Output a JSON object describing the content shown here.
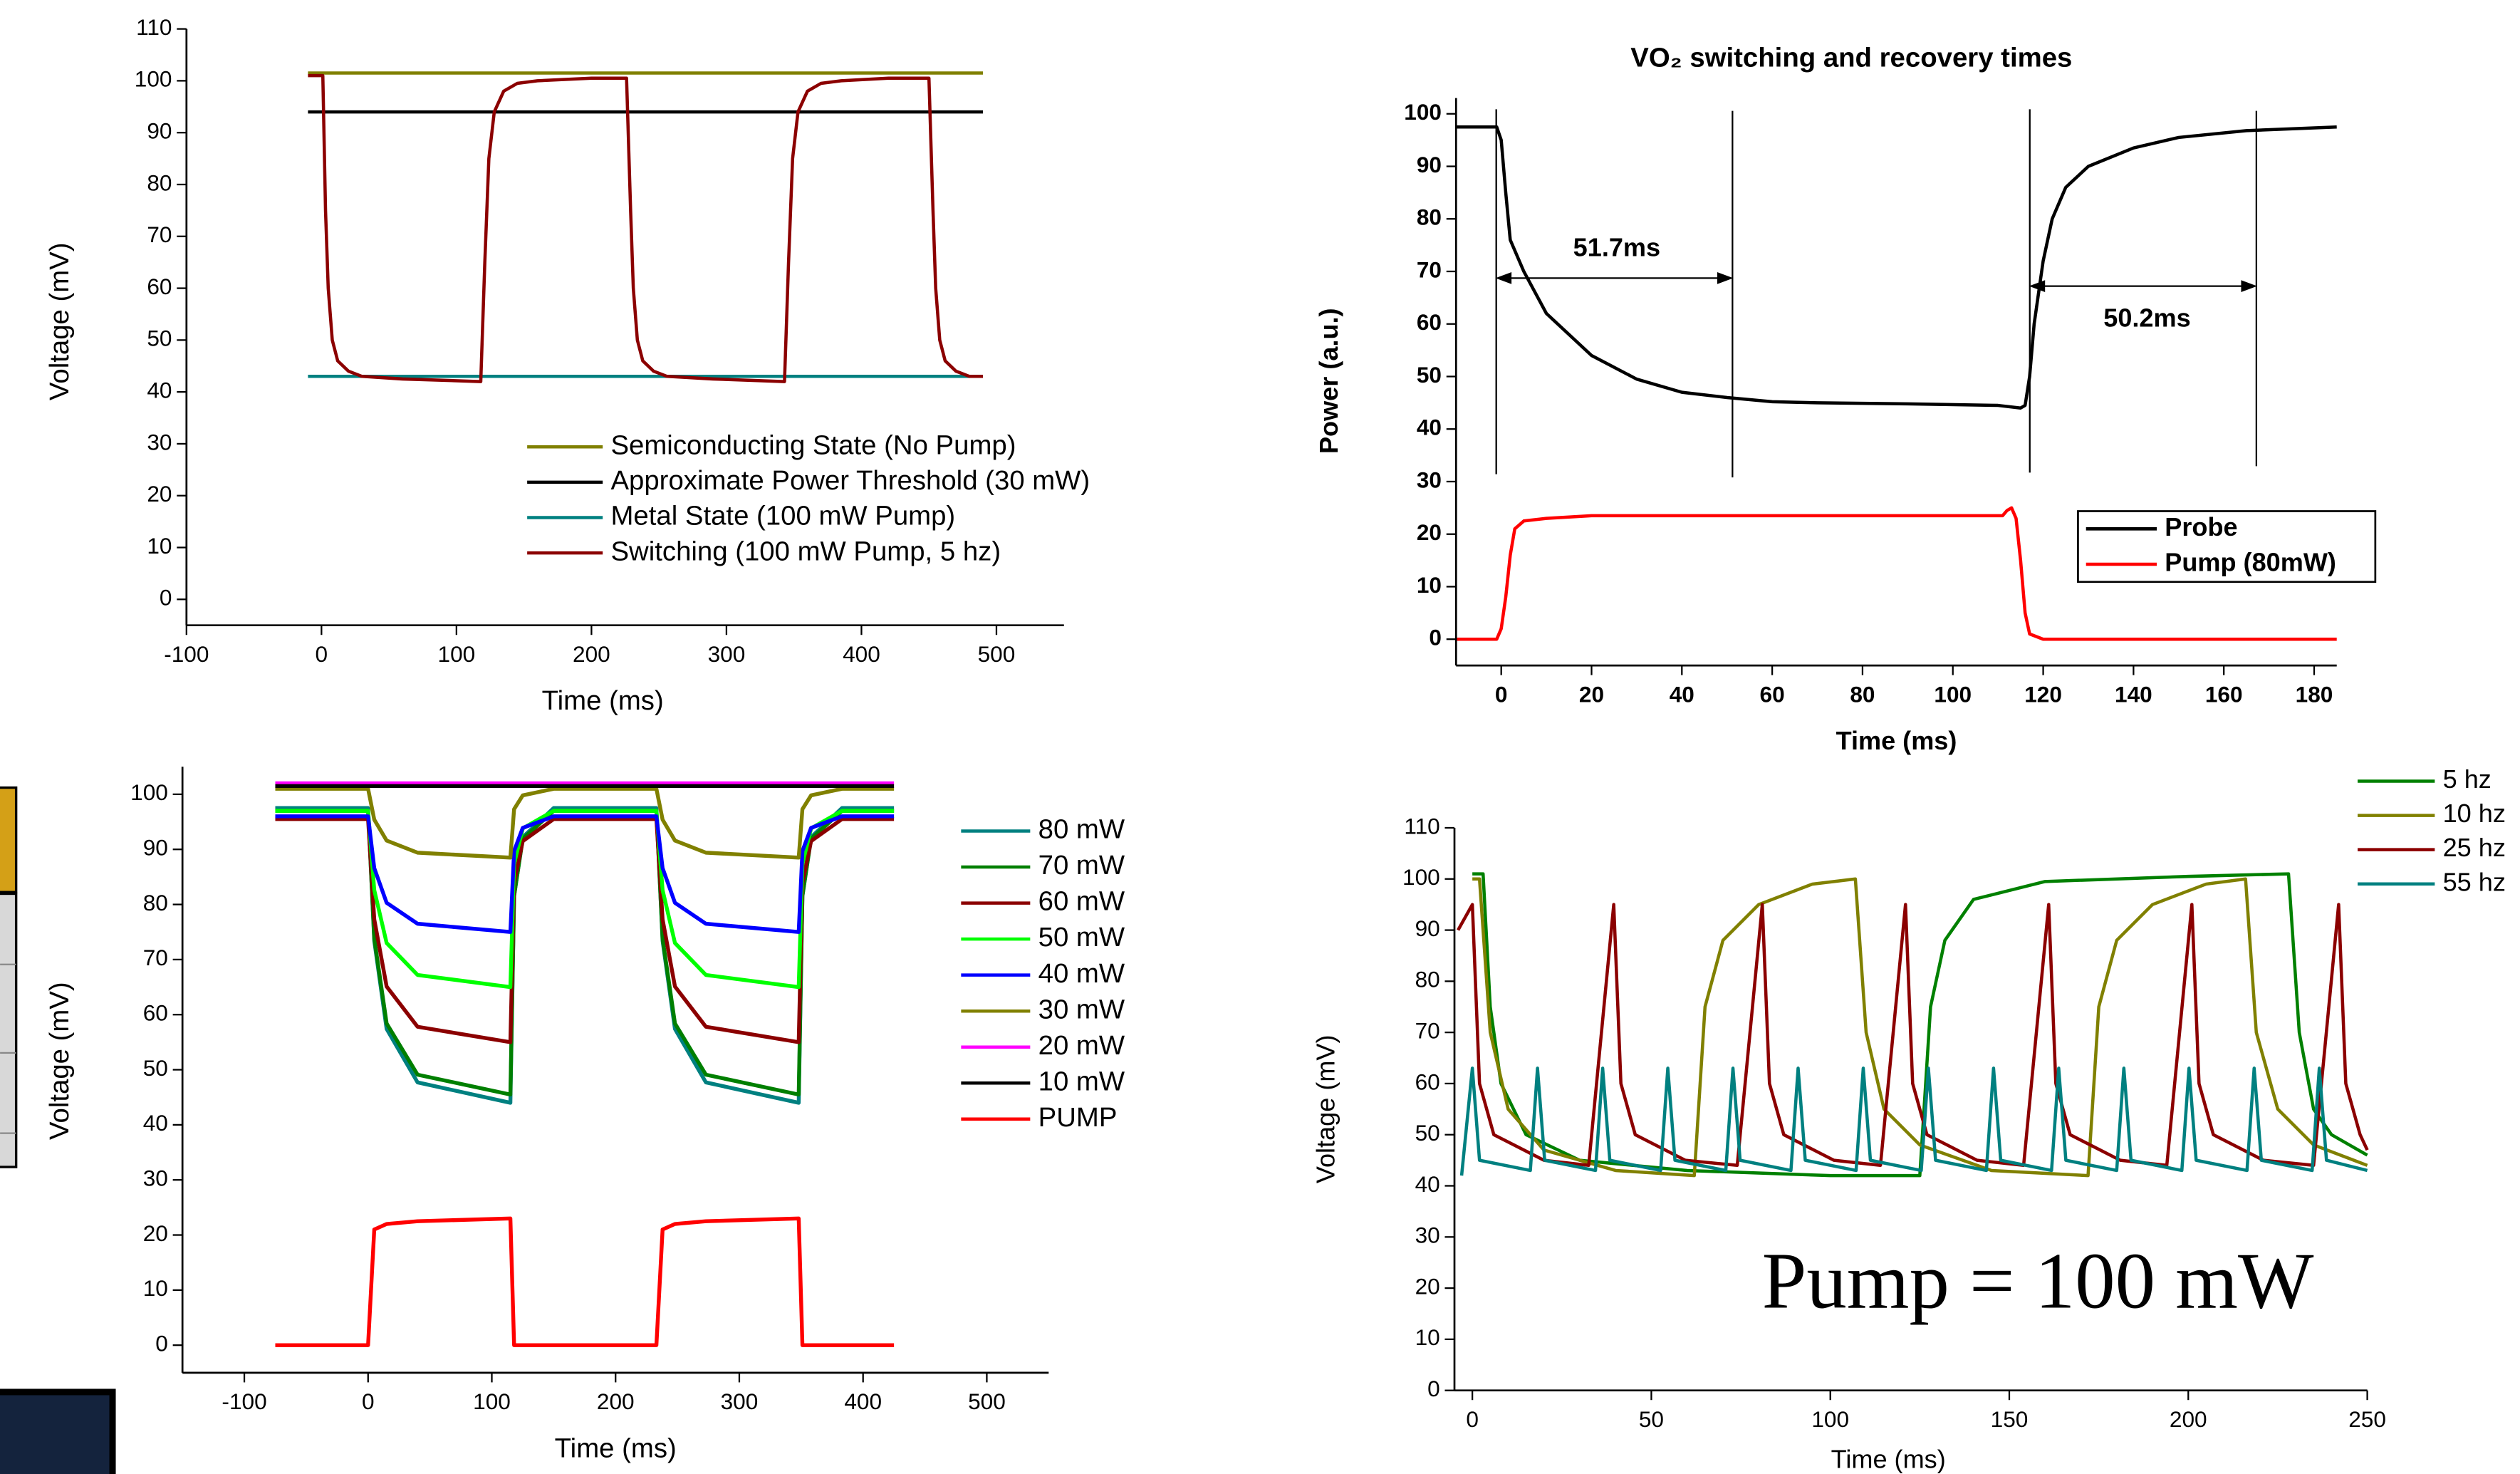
{
  "chart_data": [
    {
      "type": "line",
      "xlabel": "Time (ms)",
      "ylabel": "Voltage (mV)",
      "xlim": [
        -100,
        550
      ],
      "ylim": [
        -5,
        110
      ],
      "xticks": [
        -100,
        0,
        100,
        200,
        300,
        400,
        500
      ],
      "yticks": [
        0,
        10,
        20,
        30,
        40,
        50,
        60,
        70,
        80,
        90,
        100,
        110
      ],
      "series": [
        {
          "name": "Semiconducting State (No Pump)",
          "color": "#808000",
          "x": [
            -10,
            490
          ],
          "values": [
            101.5,
            101.5
          ]
        },
        {
          "name": "Approximate Power Threshold (30 mW)",
          "color": "#000000",
          "x": [
            -10,
            490
          ],
          "values": [
            94,
            94
          ]
        },
        {
          "name": "Metal State (100 mW Pump)",
          "color": "#008080",
          "x": [
            -10,
            490
          ],
          "values": [
            43,
            43
          ]
        },
        {
          "name": "Switching (100 mW Pump, 5 hz)",
          "color": "#8b0000",
          "x": [
            -10,
            1,
            3,
            5,
            8,
            12,
            20,
            30,
            60,
            118,
            121,
            124,
            128,
            135,
            145,
            160,
            200,
            226,
            229,
            231,
            234,
            238,
            246,
            256,
            290,
            343,
            346,
            349,
            353,
            360,
            370,
            385,
            420,
            450,
            453,
            455,
            458,
            462,
            470,
            480,
            490
          ],
          "values": [
            101,
            101,
            75,
            60,
            50,
            46,
            44,
            43,
            42.5,
            42,
            65,
            85,
            94,
            98,
            99.5,
            100,
            100.5,
            100.5,
            75,
            60,
            50,
            46,
            44,
            43,
            42.5,
            42,
            65,
            85,
            94,
            98,
            99.5,
            100,
            100.5,
            100.5,
            75,
            60,
            50,
            46,
            44,
            43,
            43
          ]
        }
      ]
    },
    {
      "type": "line",
      "title": "VO₂ switching and recovery times",
      "xlabel": "Time (ms)",
      "ylabel": "Power (a.u.)",
      "xlim": [
        -10,
        185
      ],
      "ylim": [
        -5,
        103
      ],
      "xticks": [
        0,
        20,
        40,
        60,
        80,
        100,
        120,
        140,
        160,
        180
      ],
      "yticks": [
        0,
        10,
        20,
        30,
        40,
        50,
        60,
        70,
        80,
        90,
        100
      ],
      "annotations": [
        "51.7ms",
        "50.2ms"
      ],
      "series": [
        {
          "name": "Probe",
          "color": "#000000",
          "x": [
            -10,
            -1,
            0,
            1,
            2,
            5,
            10,
            20,
            30,
            40,
            50,
            60,
            70,
            90,
            110,
            115,
            116,
            117,
            118,
            120,
            122,
            125,
            130,
            140,
            150,
            165,
            185
          ],
          "values": [
            97.5,
            97.5,
            95,
            85,
            76,
            70,
            62,
            54,
            49.5,
            47,
            46,
            45.2,
            45,
            44.8,
            44.5,
            44,
            44.5,
            50,
            60,
            72,
            80,
            86,
            90,
            93.5,
            95.5,
            96.8,
            97.5
          ]
        },
        {
          "name": "Pump (80mW)",
          "color": "#ff0000",
          "x": [
            -10,
            -1,
            0,
            1,
            2,
            3,
            5,
            10,
            20,
            60,
            111,
            112,
            113,
            114,
            115,
            116,
            117,
            120,
            185
          ],
          "values": [
            0,
            0,
            2,
            8,
            16,
            21,
            22.5,
            23,
            23.5,
            23.5,
            23.5,
            24.5,
            25,
            23,
            15,
            5,
            1,
            0,
            0
          ]
        }
      ]
    },
    {
      "type": "line",
      "xlabel": "Time (ms)",
      "ylabel": "Voltage (mV)",
      "xlim": [
        -150,
        550
      ],
      "ylim": [
        -5,
        105
      ],
      "xticks": [
        -100,
        0,
        100,
        200,
        300,
        400,
        500
      ],
      "yticks": [
        0,
        10,
        20,
        30,
        40,
        50,
        60,
        70,
        80,
        90,
        100
      ],
      "x": [
        -75,
        0,
        5,
        15,
        40,
        115,
        118,
        125,
        150,
        233,
        238,
        248,
        273,
        348,
        351,
        358,
        383,
        425
      ],
      "series": [
        {
          "name": "80 mW",
          "color": "#008080",
          "values": [
            97.5,
            97.5,
            73.4,
            57.4,
            47.7,
            44,
            81.5,
            92.2,
            97.5,
            97.5,
            73.4,
            57.4,
            47.7,
            44,
            81.5,
            92.2,
            97.5,
            97.5
          ]
        },
        {
          "name": "70 mW",
          "color": "#007f00",
          "values": [
            97,
            97,
            73.8,
            58.4,
            49.1,
            45.5,
            81.6,
            91.9,
            97,
            97,
            73.8,
            58.4,
            49.1,
            45.5,
            81.6,
            91.9,
            97,
            97
          ]
        },
        {
          "name": "60 mW",
          "color": "#8b0000",
          "values": [
            95.5,
            95.5,
            77.3,
            65.1,
            57.8,
            55,
            83.9,
            91.5,
            95.5,
            95.5,
            77.3,
            65.1,
            57.8,
            55,
            83.9,
            91.5,
            95.5,
            95.5
          ]
        },
        {
          "name": "50 mW",
          "color": "#00ff00",
          "values": [
            97,
            97,
            82.6,
            73,
            67.2,
            65,
            87.4,
            93.8,
            97,
            97,
            82.6,
            73,
            67.2,
            65,
            87.4,
            93.8,
            97,
            97
          ]
        },
        {
          "name": "40 mW",
          "color": "#0000ff",
          "values": [
            96,
            96,
            86.6,
            80.3,
            76.5,
            75,
            89.7,
            93.9,
            96,
            96,
            86.6,
            80.3,
            76.5,
            75,
            89.7,
            93.9,
            96,
            96
          ]
        },
        {
          "name": "30 mW",
          "color": "#808000",
          "values": [
            101,
            101,
            95.4,
            91.6,
            89.4,
            88.5,
            97.3,
            99.8,
            101,
            101,
            95.4,
            91.6,
            89.4,
            88.5,
            97.3,
            99.8,
            101,
            101
          ]
        },
        {
          "name": "20 mW",
          "color": "#ff00ff",
          "values": [
            102,
            102,
            102,
            102,
            102,
            102,
            102,
            102,
            102,
            102,
            102,
            102,
            102,
            102,
            102,
            102,
            102,
            102
          ]
        },
        {
          "name": "10 mW",
          "color": "#000000",
          "values": [
            101.5,
            101.5,
            101.5,
            101.5,
            101.5,
            101.5,
            101.5,
            101.5,
            101.5,
            101.5,
            101.5,
            101.5,
            101.5,
            101.5,
            101.5,
            101.5,
            101.5,
            101.5
          ]
        },
        {
          "name": "PUMP",
          "color": "#ff0000",
          "values": [
            0,
            0,
            21,
            22,
            22.5,
            23,
            0,
            0,
            0,
            0,
            21,
            22,
            22.5,
            23,
            0,
            0,
            0,
            0
          ]
        }
      ]
    },
    {
      "type": "line",
      "xlabel": "Time (ms)",
      "ylabel": "Voltage (mV)",
      "xlim": [
        -5,
        250
      ],
      "ylim": [
        0,
        110
      ],
      "xticks": [
        0,
        50,
        100,
        150,
        200,
        250
      ],
      "yticks": [
        0,
        10,
        20,
        30,
        40,
        50,
        60,
        70,
        80,
        90,
        100,
        110
      ],
      "annotations": [
        "Pump = 100 mW"
      ],
      "series": [
        {
          "name": "5 hz",
          "color": "#008000",
          "x": [
            0,
            3,
            5,
            8,
            15,
            30,
            60,
            100,
            125,
            128,
            132,
            140,
            160,
            200,
            228,
            231,
            235,
            240,
            250
          ],
          "values": [
            101,
            101,
            75,
            60,
            50,
            45,
            43,
            42,
            42,
            75,
            88,
            96,
            99.5,
            100.5,
            101,
            70,
            55,
            50,
            46
          ]
        },
        {
          "name": "10 hz",
          "color": "#808000",
          "x": [
            0,
            2,
            5,
            10,
            20,
            40,
            62,
            65,
            70,
            80,
            95,
            107,
            110,
            115,
            125,
            145,
            172,
            175,
            180,
            190,
            205,
            216,
            219,
            225,
            235,
            250
          ],
          "values": [
            100,
            100,
            70,
            55,
            47,
            43,
            42,
            75,
            88,
            95,
            99,
            100,
            70,
            55,
            48,
            43,
            42,
            75,
            88,
            95,
            99,
            100,
            70,
            55,
            48,
            44
          ]
        },
        {
          "name": "25 hz",
          "color": "#8b0000",
          "x": [
            -4,
            0,
            2,
            6,
            20,
            32.5,
            39.5,
            41.5,
            45.5,
            59.5,
            74,
            81,
            83,
            87,
            101,
            114,
            121,
            123,
            127,
            141,
            154,
            161,
            163,
            167,
            181,
            194,
            201,
            203,
            207,
            221,
            235,
            242,
            244,
            248,
            250
          ],
          "values": [
            90,
            95,
            60,
            50,
            45,
            44,
            95,
            60,
            50,
            45,
            44,
            95,
            60,
            50,
            45,
            44,
            95,
            60,
            50,
            45,
            44,
            95,
            60,
            50,
            45,
            44,
            95,
            60,
            50,
            45,
            44,
            95,
            60,
            50,
            47
          ]
        },
        {
          "name": "55 hz",
          "color": "#008080",
          "x": [
            -3,
            0,
            2,
            16.2,
            18.2,
            20.2,
            34.4,
            36.4,
            38.4,
            52.6,
            54.6,
            56.6,
            70.8,
            72.8,
            74.8,
            89,
            91,
            93,
            107.2,
            109.2,
            111.2,
            125.4,
            127.4,
            129.4,
            143.6,
            145.6,
            147.6,
            161.8,
            163.8,
            165.8,
            180,
            182,
            184,
            198.2,
            200.2,
            202.2,
            216.4,
            218.4,
            220.4,
            234.6,
            236.6,
            238.6,
            250
          ],
          "values": [
            42,
            63,
            45,
            43,
            63,
            45,
            43,
            63,
            45,
            43,
            63,
            45,
            43,
            63,
            45,
            43,
            63,
            45,
            43,
            63,
            45,
            43,
            63,
            45,
            43,
            63,
            45,
            43,
            63,
            45,
            43,
            63,
            45,
            43,
            63,
            45,
            43,
            63,
            45,
            43,
            63,
            45,
            43
          ]
        }
      ]
    }
  ]
}
